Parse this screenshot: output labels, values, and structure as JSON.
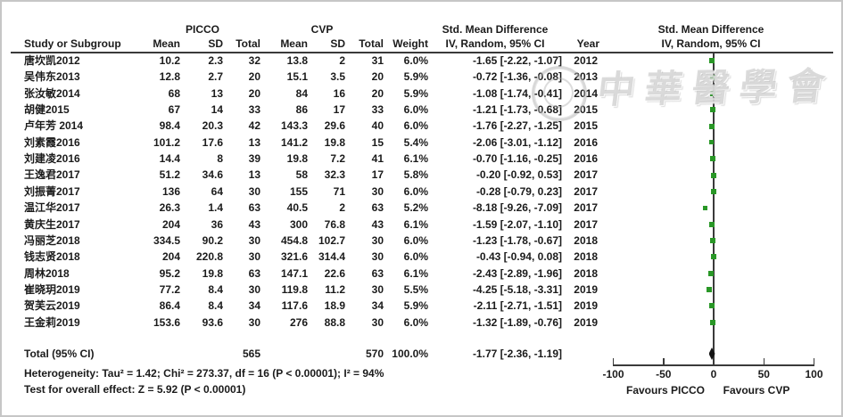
{
  "header": {
    "group1": "PICCO",
    "group2": "CVP",
    "smd_left_title": "Std. Mean Difference",
    "smd_left_sub": "IV, Random, 95% CI",
    "smd_right_title": "Std. Mean Difference",
    "smd_right_sub": "IV, Random, 95% CI",
    "col_study": "Study or Subgroup",
    "col_mean": "Mean",
    "col_sd": "SD",
    "col_total": "Total",
    "col_weight": "Weight",
    "col_year": "Year"
  },
  "totals": {
    "label": "Total (95% CI)",
    "total1": "565",
    "total2": "570",
    "weight": "100.0%",
    "ci": "-1.77 [-2.36, -1.19]",
    "smd": -1.77
  },
  "footer": {
    "heterogeneity": "Heterogeneity: Tau² = 1.42; Chi² = 273.37, df = 16 (P < 0.00001); I² = 94%",
    "overall_effect": "Test for overall effect: Z = 5.92 (P < 0.00001)"
  },
  "watermark": {
    "text": "中華醫學會"
  },
  "colors": {
    "marker_green": "#2a9727",
    "diamond_black": "#141414",
    "line_gray": "#3a3a3a"
  },
  "chart_data": {
    "type": "forest",
    "effect_measure": "Std. Mean Difference (IV, Random, 95% CI)",
    "axis": {
      "xlim": [
        -100,
        100
      ],
      "ticks": [
        -100,
        -50,
        0,
        50,
        100
      ],
      "tick_labels": [
        "-100",
        "-50",
        "0",
        "50",
        "100"
      ],
      "favours_left": "Favours PICCO",
      "favours_right": "Favours CVP"
    },
    "studies": [
      {
        "study": "唐坎凯2012",
        "mean1": "10.2",
        "sd1": "2.3",
        "total1": "32",
        "mean2": "13.8",
        "sd2": "2",
        "total2": "31",
        "weight": "6.0%",
        "smd": -1.65,
        "ci": "-1.65 [-2.22, -1.07]",
        "year": "2012"
      },
      {
        "study": "吴伟东2013",
        "mean1": "12.8",
        "sd1": "2.7",
        "total1": "20",
        "mean2": "15.1",
        "sd2": "3.5",
        "total2": "20",
        "weight": "5.9%",
        "smd": -0.72,
        "ci": "-0.72 [-1.36, -0.08]",
        "year": "2013"
      },
      {
        "study": "张汝敏2014",
        "mean1": "68",
        "sd1": "13",
        "total1": "20",
        "mean2": "84",
        "sd2": "16",
        "total2": "20",
        "weight": "5.9%",
        "smd": -1.08,
        "ci": "-1.08 [-1.74, -0.41]",
        "year": "2014"
      },
      {
        "study": "胡健2015",
        "mean1": "67",
        "sd1": "14",
        "total1": "33",
        "mean2": "86",
        "sd2": "17",
        "total2": "33",
        "weight": "6.0%",
        "smd": -1.21,
        "ci": "-1.21 [-1.73, -0.68]",
        "year": "2015"
      },
      {
        "study": "卢年芳 2014",
        "mean1": "98.4",
        "sd1": "20.3",
        "total1": "42",
        "mean2": "143.3",
        "sd2": "29.6",
        "total2": "40",
        "weight": "6.0%",
        "smd": -1.76,
        "ci": "-1.76 [-2.27, -1.25]",
        "year": "2015"
      },
      {
        "study": "刘素霞2016",
        "mean1": "101.2",
        "sd1": "17.6",
        "total1": "13",
        "mean2": "141.2",
        "sd2": "19.8",
        "total2": "15",
        "weight": "5.4%",
        "smd": -2.06,
        "ci": "-2.06 [-3.01, -1.12]",
        "year": "2016"
      },
      {
        "study": "刘建凌2016",
        "mean1": "14.4",
        "sd1": "8",
        "total1": "39",
        "mean2": "19.8",
        "sd2": "7.2",
        "total2": "41",
        "weight": "6.1%",
        "smd": -0.7,
        "ci": "-0.70 [-1.16, -0.25]",
        "year": "2016"
      },
      {
        "study": "王逸君2017",
        "mean1": "51.2",
        "sd1": "34.6",
        "total1": "13",
        "mean2": "58",
        "sd2": "32.3",
        "total2": "17",
        "weight": "5.8%",
        "smd": -0.2,
        "ci": "-0.20 [-0.92, 0.53]",
        "year": "2017"
      },
      {
        "study": "刘振菁2017",
        "mean1": "136",
        "sd1": "64",
        "total1": "30",
        "mean2": "155",
        "sd2": "71",
        "total2": "30",
        "weight": "6.0%",
        "smd": -0.28,
        "ci": "-0.28 [-0.79, 0.23]",
        "year": "2017"
      },
      {
        "study": "温江华2017",
        "mean1": "26.3",
        "sd1": "1.4",
        "total1": "63",
        "mean2": "40.5",
        "sd2": "2",
        "total2": "63",
        "weight": "5.2%",
        "smd": -8.18,
        "ci": "-8.18 [-9.26, -7.09]",
        "year": "2017"
      },
      {
        "study": "黄庆生2017",
        "mean1": "204",
        "sd1": "36",
        "total1": "43",
        "mean2": "300",
        "sd2": "76.8",
        "total2": "43",
        "weight": "6.1%",
        "smd": -1.59,
        "ci": "-1.59 [-2.07, -1.10]",
        "year": "2017"
      },
      {
        "study": "冯丽芝2018",
        "mean1": "334.5",
        "sd1": "90.2",
        "total1": "30",
        "mean2": "454.8",
        "sd2": "102.7",
        "total2": "30",
        "weight": "6.0%",
        "smd": -1.23,
        "ci": "-1.23 [-1.78, -0.67]",
        "year": "2018"
      },
      {
        "study": "钱志贤2018",
        "mean1": "204",
        "sd1": "220.8",
        "total1": "30",
        "mean2": "321.6",
        "sd2": "314.4",
        "total2": "30",
        "weight": "6.0%",
        "smd": -0.43,
        "ci": "-0.43 [-0.94, 0.08]",
        "year": "2018"
      },
      {
        "study": "周林2018",
        "mean1": "95.2",
        "sd1": "19.8",
        "total1": "63",
        "mean2": "147.1",
        "sd2": "22.6",
        "total2": "63",
        "weight": "6.1%",
        "smd": -2.43,
        "ci": "-2.43 [-2.89, -1.96]",
        "year": "2018"
      },
      {
        "study": "崔晓玥2019",
        "mean1": "77.2",
        "sd1": "8.4",
        "total1": "30",
        "mean2": "119.8",
        "sd2": "11.2",
        "total2": "30",
        "weight": "5.5%",
        "smd": -4.25,
        "ci": "-4.25 [-5.18, -3.31]",
        "year": "2019"
      },
      {
        "study": "贺芙云2019",
        "mean1": "86.4",
        "sd1": "8.4",
        "total1": "34",
        "mean2": "117.6",
        "sd2": "18.9",
        "total2": "34",
        "weight": "5.9%",
        "smd": -2.11,
        "ci": "-2.11 [-2.71, -1.51]",
        "year": "2019"
      },
      {
        "study": "王金莉2019",
        "mean1": "153.6",
        "sd1": "93.6",
        "total1": "30",
        "mean2": "276",
        "sd2": "88.8",
        "total2": "30",
        "weight": "6.0%",
        "smd": -1.32,
        "ci": "-1.32 [-1.89, -0.76]",
        "year": "2019"
      }
    ],
    "total": {
      "label": "Total (95% CI)",
      "total1": 565,
      "total2": 570,
      "weight": "100.0%",
      "smd": -1.77,
      "ci_low": -2.36,
      "ci_high": -1.19
    }
  }
}
